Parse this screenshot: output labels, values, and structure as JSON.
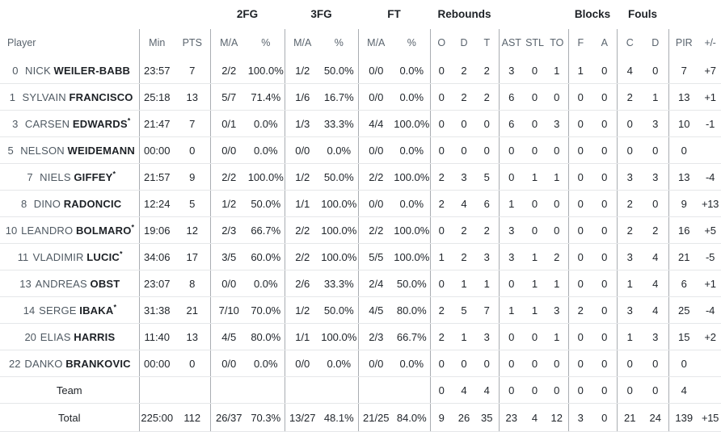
{
  "colors": {
    "background": "#ffffff",
    "dark_text": "#1d2126",
    "muted_text": "#4f5962",
    "subheader_text": "#5a646e",
    "group_divider": "#a9adb2",
    "row_divider": "#e5e7e9"
  },
  "table": {
    "starter_mark": "*",
    "group_headers": {
      "fg2": "2FG",
      "fg3": "3FG",
      "ft": "FT",
      "rebounds": "Rebounds",
      "blocks": "Blocks",
      "fouls": "Fouls"
    },
    "column_headers": {
      "player": "Player",
      "min": "Min",
      "pts": "PTS",
      "ma": "M/A",
      "pct": "%",
      "reb_o": "O",
      "reb_d": "D",
      "reb_t": "T",
      "ast": "AST",
      "stl": "STL",
      "to": "TO",
      "blk_f": "F",
      "blk_a": "A",
      "foul_c": "C",
      "foul_d": "D",
      "pir": "PIR",
      "plus_minus": "+/-"
    },
    "players": [
      {
        "num": "0",
        "first": "NICK",
        "last": "WEILER-BABB",
        "starter": false,
        "min": "23:57",
        "pts": "7",
        "fg2_ma": "2/2",
        "fg2_pct": "100.0%",
        "fg3_ma": "1/2",
        "fg3_pct": "50.0%",
        "ft_ma": "0/0",
        "ft_pct": "0.0%",
        "reb_o": "0",
        "reb_d": "2",
        "reb_t": "2",
        "ast": "3",
        "stl": "0",
        "to": "1",
        "blk_f": "1",
        "blk_a": "0",
        "foul_c": "4",
        "foul_d": "0",
        "pir": "7",
        "pm": "+7"
      },
      {
        "num": "1",
        "first": "SYLVAIN",
        "last": "FRANCISCO",
        "starter": false,
        "min": "25:18",
        "pts": "13",
        "fg2_ma": "5/7",
        "fg2_pct": "71.4%",
        "fg3_ma": "1/6",
        "fg3_pct": "16.7%",
        "ft_ma": "0/0",
        "ft_pct": "0.0%",
        "reb_o": "0",
        "reb_d": "2",
        "reb_t": "2",
        "ast": "6",
        "stl": "0",
        "to": "0",
        "blk_f": "0",
        "blk_a": "0",
        "foul_c": "2",
        "foul_d": "1",
        "pir": "13",
        "pm": "+1"
      },
      {
        "num": "3",
        "first": "CARSEN",
        "last": "EDWARDS",
        "starter": true,
        "min": "21:47",
        "pts": "7",
        "fg2_ma": "0/1",
        "fg2_pct": "0.0%",
        "fg3_ma": "1/3",
        "fg3_pct": "33.3%",
        "ft_ma": "4/4",
        "ft_pct": "100.0%",
        "reb_o": "0",
        "reb_d": "0",
        "reb_t": "0",
        "ast": "6",
        "stl": "0",
        "to": "3",
        "blk_f": "0",
        "blk_a": "0",
        "foul_c": "0",
        "foul_d": "3",
        "pir": "10",
        "pm": "-1"
      },
      {
        "num": "5",
        "first": "NELSON",
        "last": "WEIDEMANN",
        "starter": false,
        "min": "00:00",
        "pts": "0",
        "fg2_ma": "0/0",
        "fg2_pct": "0.0%",
        "fg3_ma": "0/0",
        "fg3_pct": "0.0%",
        "ft_ma": "0/0",
        "ft_pct": "0.0%",
        "reb_o": "0",
        "reb_d": "0",
        "reb_t": "0",
        "ast": "0",
        "stl": "0",
        "to": "0",
        "blk_f": "0",
        "blk_a": "0",
        "foul_c": "0",
        "foul_d": "0",
        "pir": "0",
        "pm": ""
      },
      {
        "num": "7",
        "first": "NIELS",
        "last": "GIFFEY",
        "starter": true,
        "min": "21:57",
        "pts": "9",
        "fg2_ma": "2/2",
        "fg2_pct": "100.0%",
        "fg3_ma": "1/2",
        "fg3_pct": "50.0%",
        "ft_ma": "2/2",
        "ft_pct": "100.0%",
        "reb_o": "2",
        "reb_d": "3",
        "reb_t": "5",
        "ast": "0",
        "stl": "1",
        "to": "1",
        "blk_f": "0",
        "blk_a": "0",
        "foul_c": "3",
        "foul_d": "3",
        "pir": "13",
        "pm": "-4"
      },
      {
        "num": "8",
        "first": "DINO",
        "last": "RADONCIC",
        "starter": false,
        "min": "12:24",
        "pts": "5",
        "fg2_ma": "1/2",
        "fg2_pct": "50.0%",
        "fg3_ma": "1/1",
        "fg3_pct": "100.0%",
        "ft_ma": "0/0",
        "ft_pct": "0.0%",
        "reb_o": "2",
        "reb_d": "4",
        "reb_t": "6",
        "ast": "1",
        "stl": "0",
        "to": "0",
        "blk_f": "0",
        "blk_a": "0",
        "foul_c": "2",
        "foul_d": "0",
        "pir": "9",
        "pm": "+13"
      },
      {
        "num": "10",
        "first": "LEANDRO",
        "last": "BOLMARO",
        "starter": true,
        "min": "19:06",
        "pts": "12",
        "fg2_ma": "2/3",
        "fg2_pct": "66.7%",
        "fg3_ma": "2/2",
        "fg3_pct": "100.0%",
        "ft_ma": "2/2",
        "ft_pct": "100.0%",
        "reb_o": "0",
        "reb_d": "2",
        "reb_t": "2",
        "ast": "3",
        "stl": "0",
        "to": "0",
        "blk_f": "0",
        "blk_a": "0",
        "foul_c": "2",
        "foul_d": "2",
        "pir": "16",
        "pm": "+5"
      },
      {
        "num": "11",
        "first": "VLADIMIR",
        "last": "LUCIC",
        "starter": true,
        "min": "34:06",
        "pts": "17",
        "fg2_ma": "3/5",
        "fg2_pct": "60.0%",
        "fg3_ma": "2/2",
        "fg3_pct": "100.0%",
        "ft_ma": "5/5",
        "ft_pct": "100.0%",
        "reb_o": "1",
        "reb_d": "2",
        "reb_t": "3",
        "ast": "3",
        "stl": "1",
        "to": "2",
        "blk_f": "0",
        "blk_a": "0",
        "foul_c": "3",
        "foul_d": "4",
        "pir": "21",
        "pm": "-5"
      },
      {
        "num": "13",
        "first": "ANDREAS",
        "last": "OBST",
        "starter": false,
        "min": "23:07",
        "pts": "8",
        "fg2_ma": "0/0",
        "fg2_pct": "0.0%",
        "fg3_ma": "2/6",
        "fg3_pct": "33.3%",
        "ft_ma": "2/4",
        "ft_pct": "50.0%",
        "reb_o": "0",
        "reb_d": "1",
        "reb_t": "1",
        "ast": "0",
        "stl": "1",
        "to": "1",
        "blk_f": "0",
        "blk_a": "0",
        "foul_c": "1",
        "foul_d": "4",
        "pir": "6",
        "pm": "+1"
      },
      {
        "num": "14",
        "first": "SERGE",
        "last": "IBAKA",
        "starter": true,
        "min": "31:38",
        "pts": "21",
        "fg2_ma": "7/10",
        "fg2_pct": "70.0%",
        "fg3_ma": "1/2",
        "fg3_pct": "50.0%",
        "ft_ma": "4/5",
        "ft_pct": "80.0%",
        "reb_o": "2",
        "reb_d": "5",
        "reb_t": "7",
        "ast": "1",
        "stl": "1",
        "to": "3",
        "blk_f": "2",
        "blk_a": "0",
        "foul_c": "3",
        "foul_d": "4",
        "pir": "25",
        "pm": "-4"
      },
      {
        "num": "20",
        "first": "ELIAS",
        "last": "HARRIS",
        "starter": false,
        "min": "11:40",
        "pts": "13",
        "fg2_ma": "4/5",
        "fg2_pct": "80.0%",
        "fg3_ma": "1/1",
        "fg3_pct": "100.0%",
        "ft_ma": "2/3",
        "ft_pct": "66.7%",
        "reb_o": "2",
        "reb_d": "1",
        "reb_t": "3",
        "ast": "0",
        "stl": "0",
        "to": "1",
        "blk_f": "0",
        "blk_a": "0",
        "foul_c": "1",
        "foul_d": "3",
        "pir": "15",
        "pm": "+2"
      },
      {
        "num": "22",
        "first": "DANKO",
        "last": "BRANKOVIC",
        "starter": false,
        "min": "00:00",
        "pts": "0",
        "fg2_ma": "0/0",
        "fg2_pct": "0.0%",
        "fg3_ma": "0/0",
        "fg3_pct": "0.0%",
        "ft_ma": "0/0",
        "ft_pct": "0.0%",
        "reb_o": "0",
        "reb_d": "0",
        "reb_t": "0",
        "ast": "0",
        "stl": "0",
        "to": "0",
        "blk_f": "0",
        "blk_a": "0",
        "foul_c": "0",
        "foul_d": "0",
        "pir": "0",
        "pm": ""
      }
    ],
    "team_row": {
      "label": "Team",
      "reb_o": "0",
      "reb_d": "4",
      "reb_t": "4",
      "ast": "0",
      "stl": "0",
      "to": "0",
      "blk_f": "0",
      "blk_a": "0",
      "foul_c": "0",
      "foul_d": "0",
      "pir": "4",
      "pm": ""
    },
    "total_row": {
      "label": "Total",
      "min": "225:00",
      "pts": "112",
      "fg2_ma": "26/37",
      "fg2_pct": "70.3%",
      "fg3_ma": "13/27",
      "fg3_pct": "48.1%",
      "ft_ma": "21/25",
      "ft_pct": "84.0%",
      "reb_o": "9",
      "reb_d": "26",
      "reb_t": "35",
      "ast": "23",
      "stl": "4",
      "to": "12",
      "blk_f": "3",
      "blk_a": "0",
      "foul_c": "21",
      "foul_d": "24",
      "pir": "139",
      "pm": "+15"
    }
  }
}
